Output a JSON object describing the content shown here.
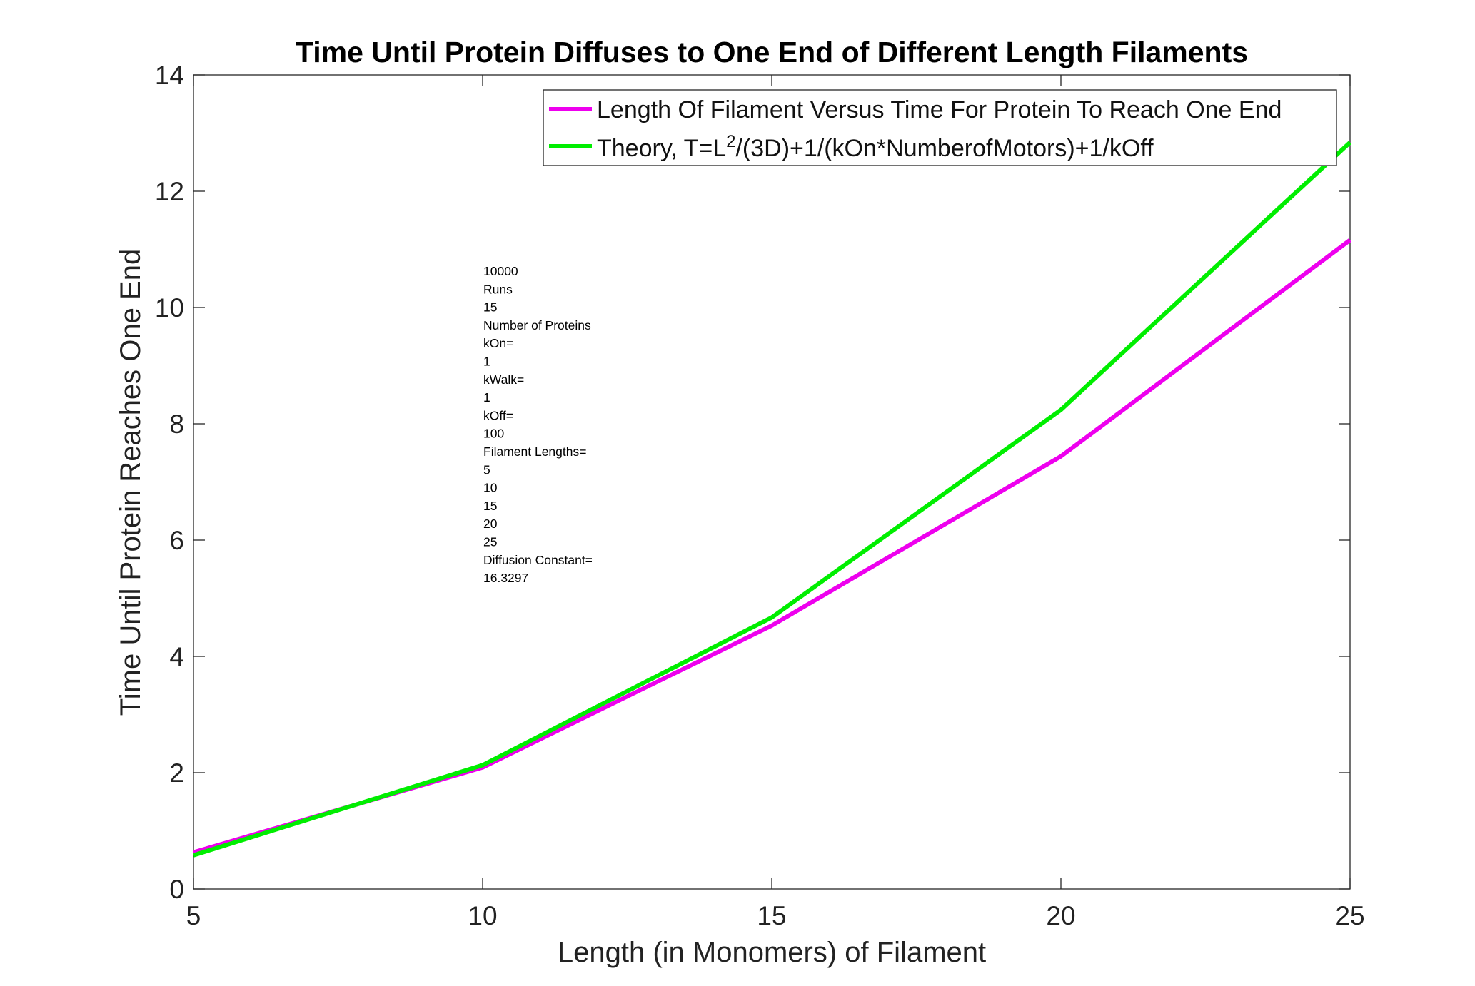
{
  "chart_data": {
    "type": "line",
    "title": "Time Until Protein Diffuses to One End of Different Length Filaments",
    "xlabel": "Length (in Monomers) of Filament",
    "ylabel": "Time Until Protein Reaches One End",
    "xlim": [
      5,
      25
    ],
    "ylim": [
      0,
      14
    ],
    "x_ticks": [
      5,
      10,
      15,
      20,
      25
    ],
    "y_ticks": [
      0,
      2,
      4,
      6,
      8,
      10,
      12,
      14
    ],
    "x": [
      5,
      10,
      15,
      20,
      25
    ],
    "grid": false,
    "legend_position": "top-right",
    "series": [
      {
        "name": "Length Of Filament Versus Time For Protein To Reach One End",
        "color": "#ee00ee",
        "values": [
          0.63,
          2.09,
          4.53,
          7.44,
          11.16
        ]
      },
      {
        "name_parts": [
          "Theory, T=L",
          "2",
          "/(3D)+1/(kOn*NumberofMotors)+1/kOff"
        ],
        "color": "#00ee00",
        "values": [
          0.58,
          2.13,
          4.67,
          8.24,
          12.84
        ]
      }
    ],
    "annotation_lines": [
      "10000",
      "Runs",
      "15",
      "Number of Proteins",
      "kOn=",
      "1",
      "kWalk=",
      "1",
      "kOff=",
      "100",
      "Filament Lengths=",
      "5",
      "10",
      "15",
      "20",
      "25",
      "Diffusion Constant=",
      "16.3297"
    ]
  }
}
